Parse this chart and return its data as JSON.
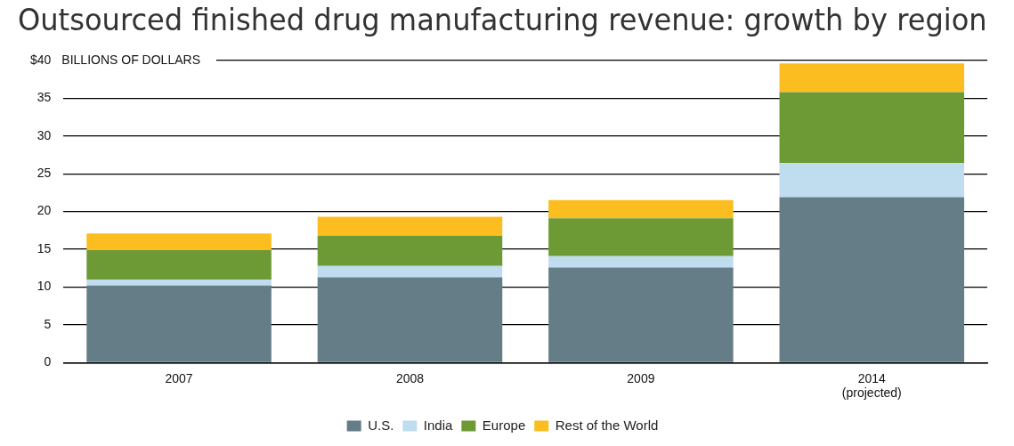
{
  "chart_data": {
    "type": "bar",
    "title": "Outsourced finished drug manufacturing revenue: growth by region",
    "ylabel": "BILLIONS OF DOLLARS",
    "categories": [
      "2007",
      "2008",
      "2009",
      "2014\n(projected)"
    ],
    "stacked": true,
    "series": [
      {
        "name": "U.S.",
        "color": "#647d87",
        "values": [
          10.2,
          11.3,
          12.6,
          21.9
        ]
      },
      {
        "name": "India",
        "color": "#c0dcef",
        "values": [
          0.8,
          1.5,
          1.5,
          4.5
        ]
      },
      {
        "name": "Europe",
        "color": "#6d9a35",
        "values": [
          3.9,
          4.0,
          5.0,
          9.4
        ]
      },
      {
        "name": "Rest of the World",
        "color": "#fbbd1f",
        "values": [
          2.2,
          2.5,
          2.4,
          3.8
        ]
      }
    ],
    "ylim": [
      0,
      40
    ],
    "yticks": [
      0,
      5,
      10,
      15,
      20,
      25,
      30,
      35,
      {
        "value": 40,
        "label": "$40"
      }
    ],
    "grid": "y",
    "legend": "bottom"
  }
}
